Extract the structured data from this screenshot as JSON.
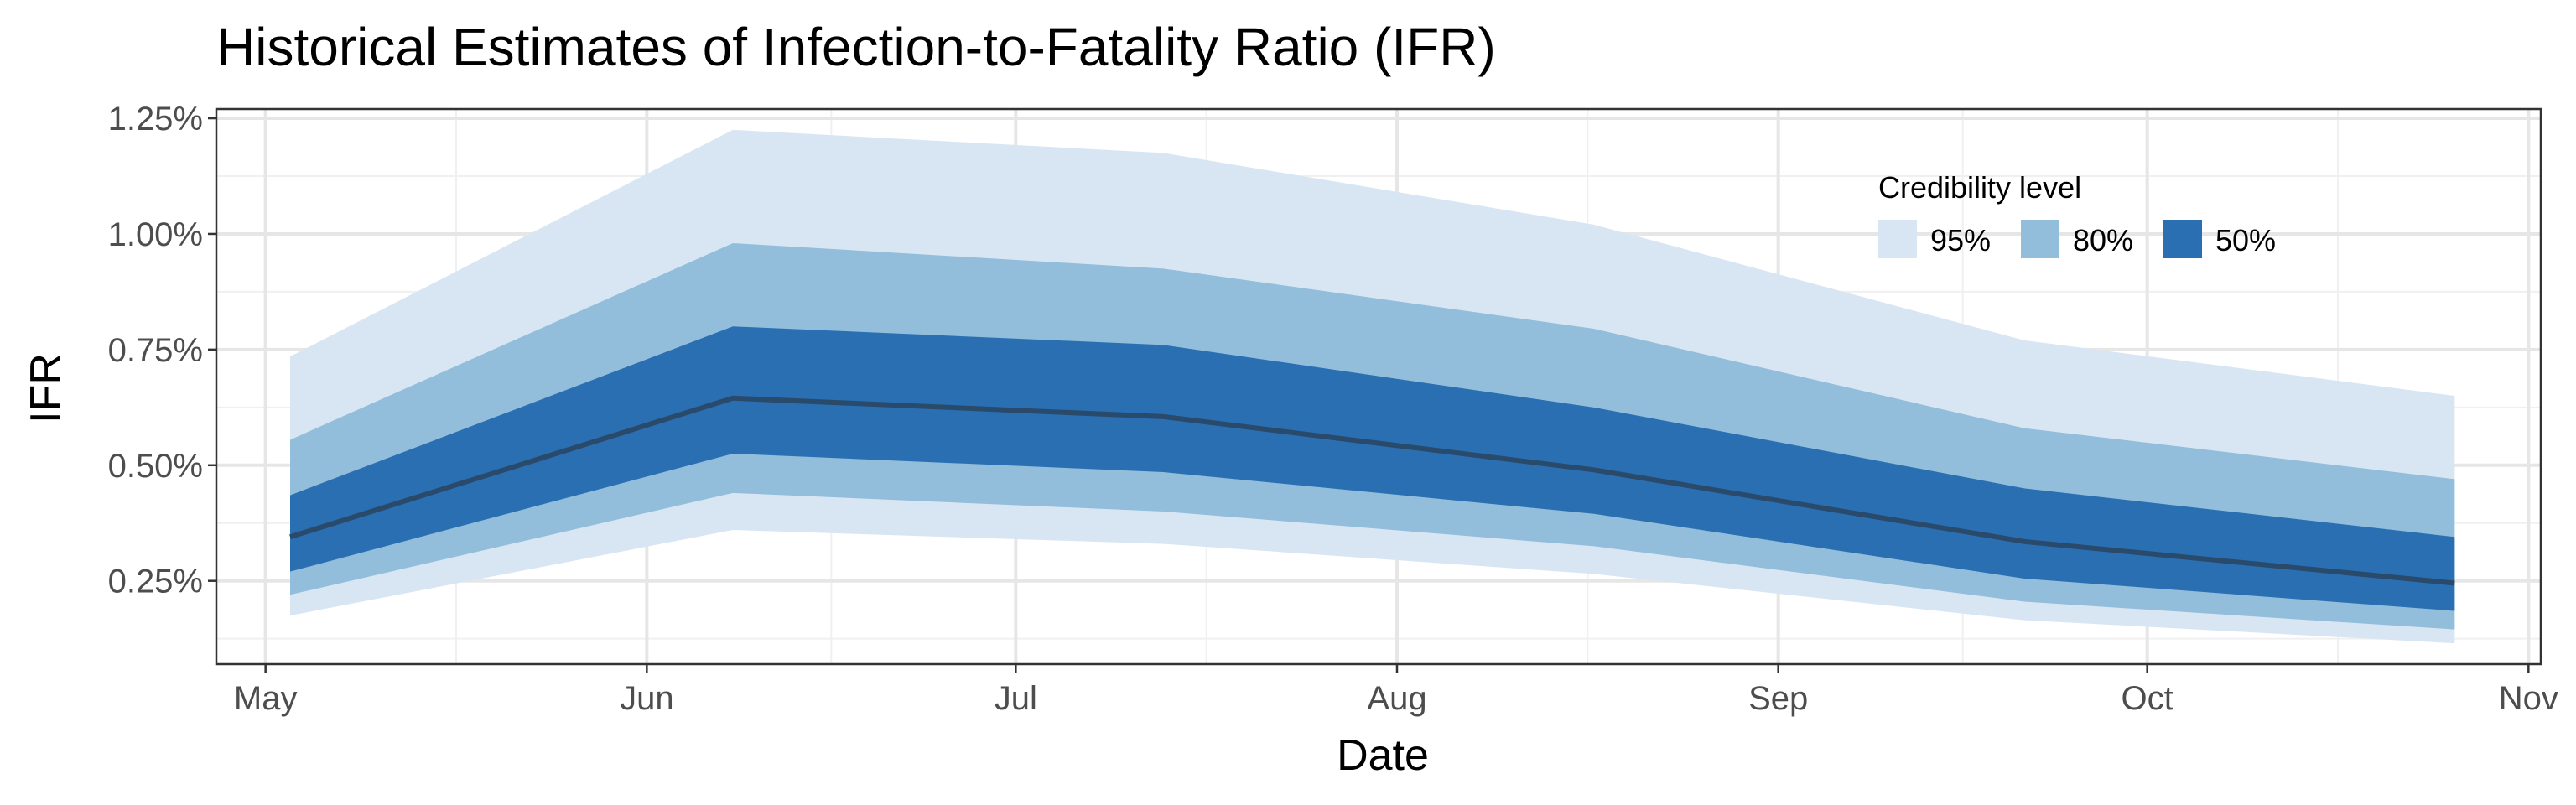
{
  "chart_data": {
    "type": "area",
    "title": "Historical Estimates of Infection-to-Fatality Ratio (IFR)",
    "xlabel": "Date",
    "ylabel": "IFR",
    "x_tick_labels": [
      "May",
      "Jun",
      "Jul",
      "Aug",
      "Sep",
      "Oct",
      "Nov"
    ],
    "x_ticks": [
      "05-01",
      "06-01",
      "07-01",
      "08-01",
      "09-01",
      "10-01",
      "11-01"
    ],
    "y_ticks": [
      0.25,
      0.5,
      0.75,
      1.0,
      1.25
    ],
    "y_tick_labels": [
      "0.25%",
      "0.50%",
      "0.75%",
      "1.00%",
      "1.25%"
    ],
    "xlim": [
      "04-27",
      "11-02"
    ],
    "ylim": [
      0.07,
      1.27
    ],
    "grid": true,
    "legend": {
      "title": "Credibility level",
      "position": "top-right",
      "entries": [
        "95%",
        "80%",
        "50%"
      ]
    },
    "x": [
      "05-03",
      "06-08",
      "07-13",
      "08-17",
      "09-21",
      "10-26"
    ],
    "median": [
      0.345,
      0.645,
      0.605,
      0.49,
      0.335,
      0.245
    ],
    "bands": [
      {
        "name": "95%",
        "color": "#d8e6f4",
        "lower": [
          0.175,
          0.36,
          0.33,
          0.265,
          0.165,
          0.115
        ],
        "upper": [
          0.735,
          1.225,
          1.175,
          1.02,
          0.77,
          0.65
        ]
      },
      {
        "name": "80%",
        "color": "#92bedb",
        "lower": [
          0.22,
          0.44,
          0.4,
          0.325,
          0.205,
          0.145
        ],
        "upper": [
          0.555,
          0.98,
          0.925,
          0.795,
          0.58,
          0.47
        ]
      },
      {
        "name": "50%",
        "color": "#2b6fb3",
        "lower": [
          0.27,
          0.525,
          0.485,
          0.395,
          0.255,
          0.185
        ],
        "upper": [
          0.435,
          0.8,
          0.76,
          0.625,
          0.45,
          0.345
        ]
      }
    ],
    "median_color": "#2a4a6b"
  }
}
